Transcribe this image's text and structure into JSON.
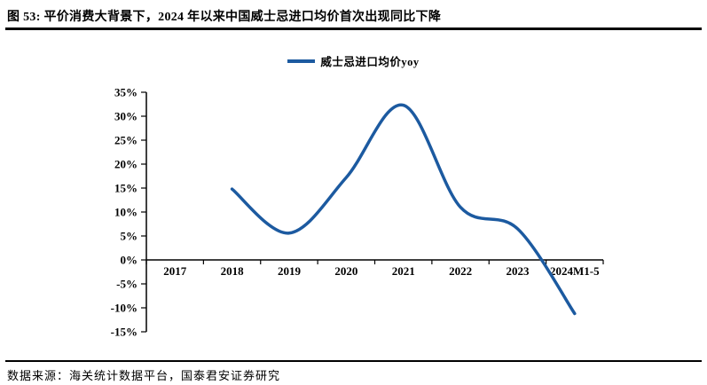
{
  "page": {
    "title": "图 53:  平价消费大背景下，2024 年以来中国威士忌进口均价首次出现同比下降",
    "footer": "数据来源：海关统计数据平台，国泰君安证券研究"
  },
  "chart_data": {
    "type": "line",
    "title": "",
    "categories": [
      "2017",
      "2018",
      "2019",
      "2020",
      "2021",
      "2022",
      "2023",
      "2024M1-5"
    ],
    "series": [
      {
        "name": "威士忌进口均价yoy",
        "values": [
          null,
          14.8,
          5.6,
          17.2,
          32.3,
          11.0,
          6.5,
          -11.2
        ]
      }
    ],
    "xlabel": "",
    "ylabel": "",
    "ylim": [
      -15,
      35
    ],
    "ytick_step": 5,
    "ytick_suffix": "%",
    "grid": false,
    "legend_position": "top-center",
    "line_color": "#1C5AA0",
    "axis_color": "#000000"
  }
}
